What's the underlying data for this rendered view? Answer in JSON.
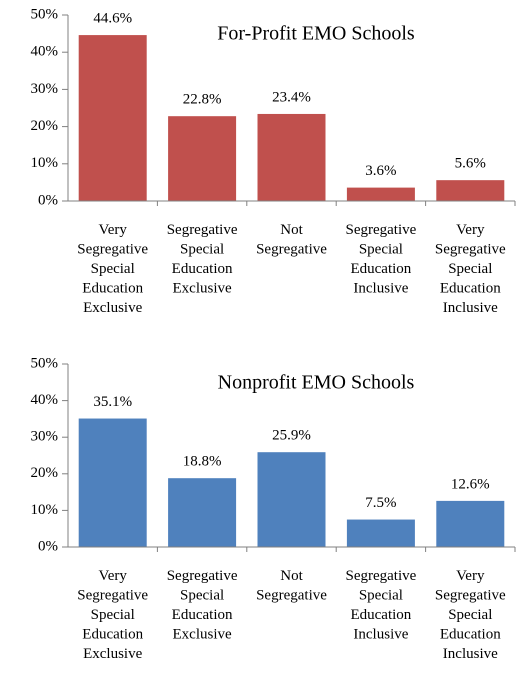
{
  "chart_data": [
    {
      "type": "bar",
      "title": "For-Profit EMO Schools",
      "categories": [
        "Very Segregative Special Education Exclusive",
        "Segregative Special Education Exclusive",
        "Not Segregative",
        "Segregative Special Education Inclusive",
        "Very Segregative Special Education Inclusive"
      ],
      "values": [
        44.6,
        22.8,
        23.4,
        3.6,
        5.6
      ],
      "value_labels": [
        "44.6%",
        "22.8%",
        "23.4%",
        "3.6%",
        "5.6%"
      ],
      "color": "#c0504d",
      "ylim": [
        0,
        50
      ],
      "yticks": [
        {
          "value": 0,
          "label": "0%"
        },
        {
          "value": 10,
          "label": "10%"
        },
        {
          "value": 20,
          "label": "20%"
        },
        {
          "value": 30,
          "label": "30%"
        },
        {
          "value": 40,
          "label": "40%"
        },
        {
          "value": 50,
          "label": "50%"
        }
      ]
    },
    {
      "type": "bar",
      "title": "Nonprofit EMO Schools",
      "categories": [
        "Very Segregative Special Education Exclusive",
        "Segregative Special Education Exclusive",
        "Not Segregative",
        "Segregative Special Education Inclusive",
        "Very Segregative Special Education Inclusive"
      ],
      "values": [
        35.1,
        18.8,
        25.9,
        7.5,
        12.6
      ],
      "value_labels": [
        "35.1%",
        "18.8%",
        "25.9%",
        "7.5%",
        "12.6%"
      ],
      "color": "#4f81bd",
      "ylim": [
        0,
        50
      ],
      "yticks": [
        {
          "value": 0,
          "label": "0%"
        },
        {
          "value": 10,
          "label": "10%"
        },
        {
          "value": 20,
          "label": "20%"
        },
        {
          "value": 30,
          "label": "30%"
        },
        {
          "value": 40,
          "label": "40%"
        },
        {
          "value": 50,
          "label": "50%"
        }
      ]
    }
  ]
}
